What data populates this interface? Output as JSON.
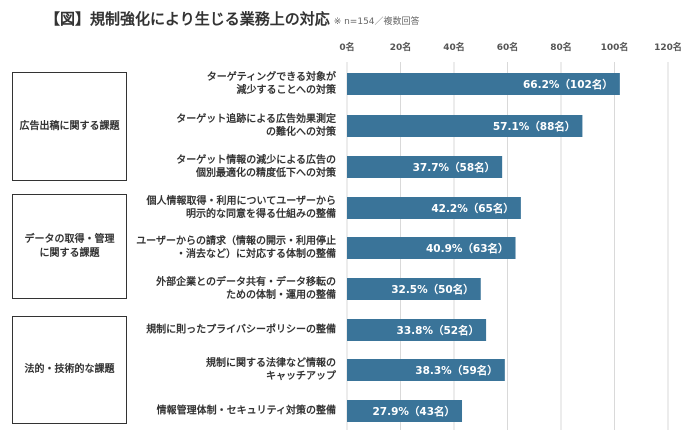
{
  "chart_data": {
    "type": "bar",
    "orientation": "horizontal",
    "title": "【図】規制強化により生じる業務上の対応",
    "note": "※ n=154／複数回答",
    "xlim": [
      0,
      120
    ],
    "x_ticks": [
      "0名",
      "20名",
      "40名",
      "60名",
      "80名",
      "100名",
      "120名"
    ],
    "x_tick_values": [
      0,
      20,
      40,
      60,
      80,
      100,
      120
    ],
    "grid": true,
    "bar_color": "#3a7499",
    "groups": [
      {
        "label": "広告出稿に関する課題",
        "count": 3
      },
      {
        "label": "データの取得・管理\nに関する課題",
        "count": 3
      },
      {
        "label": "法的・技術的な課題",
        "count": 3
      }
    ],
    "categories": [
      "ターゲティングできる対象が\n減少することへの対策",
      "ターゲット追跡による広告効果測定\nの難化への対策",
      "ターゲット情報の減少による広告の\n個別最適化の精度低下への対策",
      "個人情報取得・利用についてユーザーから\n明示的な同意を得る仕組みの整備",
      "ユーザーからの請求（情報の開示・利用停止\n・消去など）に対応する体制の整備",
      "外部企業とのデータ共有・データ移転の\nための体制・運用の整備",
      "規制に則ったプライバシーポリシーの整備",
      "規制に関する法律など情報の\nキャッチアップ",
      "情報管理体制・セキュリティ対策の整備"
    ],
    "values": [
      102,
      88,
      58,
      65,
      63,
      50,
      52,
      59,
      43
    ],
    "data_labels": [
      "66.2%（102名）",
      "57.1%（88名）",
      "37.7%（58名）",
      "42.2%（65名）",
      "40.9%（63名）",
      "32.5%（50名）",
      "33.8%（52名）",
      "38.3%（59名）",
      "27.9%（43名）"
    ]
  }
}
